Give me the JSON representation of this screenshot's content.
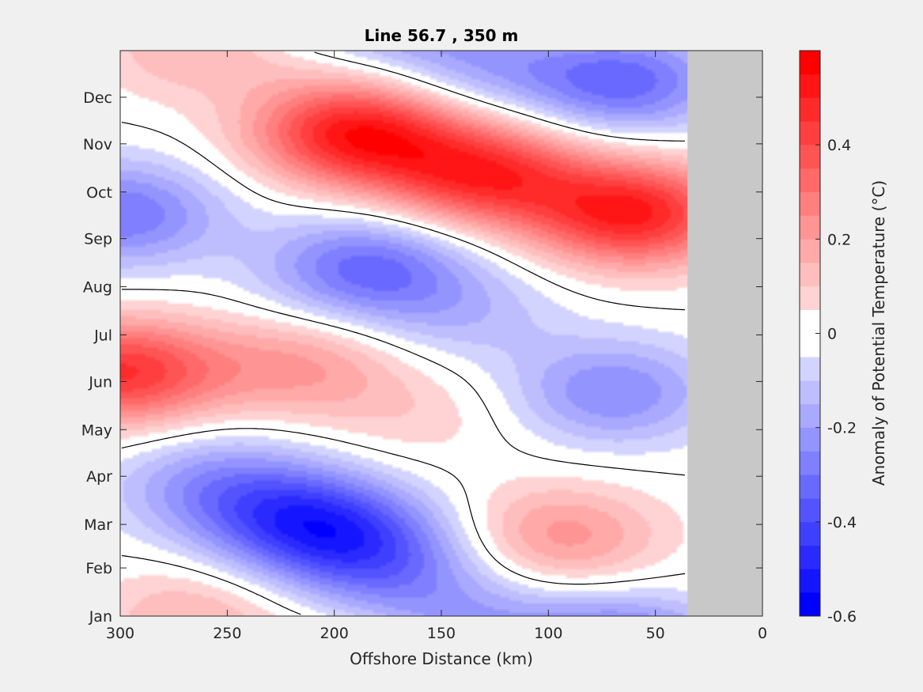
{
  "chart_data": {
    "type": "heatmap",
    "title": "Line 56.7 , 350 m",
    "xlabel": "Offshore Distance (km)",
    "ylabel": "",
    "xlim": [
      300,
      0
    ],
    "x_ticks": [
      300,
      250,
      200,
      150,
      100,
      50,
      0
    ],
    "y_ticks": [
      "Jan",
      "Feb",
      "Mar",
      "Apr",
      "May",
      "Jun",
      "Jul",
      "Aug",
      "Sep",
      "Oct",
      "Nov",
      "Dec"
    ],
    "y_tick_days": [
      1,
      32,
      60,
      91,
      121,
      152,
      182,
      213,
      244,
      274,
      305,
      335
    ],
    "ylim_days": [
      1,
      365
    ],
    "data_xlim": [
      35,
      300
    ],
    "no_data_region": {
      "x_range": [
        0,
        35
      ],
      "color": "#c8c8c8"
    },
    "colorbar": {
      "label": "Anomaly of Potential Temperature (°C)",
      "range": [
        -0.6,
        0.6
      ],
      "step": 0.05,
      "ticks": [
        -0.6,
        -0.4,
        -0.2,
        0,
        0.2,
        0.4
      ],
      "tick_labels": [
        "-0.6",
        "-0.4",
        "-0.2",
        "0",
        "0.2",
        "0.4"
      ],
      "zero_contour_color": "#000000"
    },
    "features": [
      {
        "x": 190,
        "day": 312,
        "value": 0.52
      },
      {
        "x": 130,
        "day": 285,
        "value": 0.45
      },
      {
        "x": 60,
        "day": 260,
        "value": 0.5
      },
      {
        "x": 300,
        "day": 158,
        "value": 0.45
      },
      {
        "x": 215,
        "day": 162,
        "value": 0.2
      },
      {
        "x": 160,
        "day": 130,
        "value": 0.08
      },
      {
        "x": 95,
        "day": 52,
        "value": 0.23
      },
      {
        "x": 265,
        "day": 2,
        "value": 0.15
      },
      {
        "x": 210,
        "day": 60,
        "value": -0.42
      },
      {
        "x": 175,
        "day": 35,
        "value": -0.25
      },
      {
        "x": 255,
        "day": 85,
        "value": -0.22
      },
      {
        "x": 65,
        "day": 345,
        "value": -0.33
      },
      {
        "x": 135,
        "day": 358,
        "value": -0.18
      },
      {
        "x": 300,
        "day": 260,
        "value": -0.3
      },
      {
        "x": 185,
        "day": 225,
        "value": -0.32
      },
      {
        "x": 70,
        "day": 145,
        "value": -0.25
      },
      {
        "x": 140,
        "day": 195,
        "value": -0.12
      }
    ]
  }
}
